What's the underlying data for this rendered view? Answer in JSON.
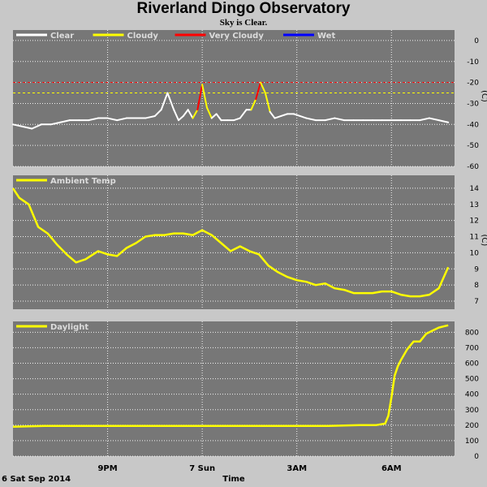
{
  "title": "Riverland Dingo Observatory",
  "subtitle": "Sky is Clear.",
  "x_axis_label": "Time",
  "date_label": "6 Sat Sep 2014",
  "x_ticks": [
    "9PM",
    "7 Sun",
    "3AM",
    "6AM"
  ],
  "colors": {
    "plot_bg": "#777777",
    "page_bg": "#c8c8c8",
    "grid": "#ffffff",
    "clear": "#ffffff",
    "cloudy": "#ffff00",
    "very_cloudy": "#ff0000",
    "wet": "#0000ff",
    "legend_text": "#dcdcdc"
  },
  "chart_data": [
    {
      "type": "line",
      "name": "sky-temperature",
      "unit": "(C)",
      "ylim": [
        -60,
        5
      ],
      "yticks": [
        0,
        -10,
        -20,
        -30,
        -40,
        -50,
        -60
      ],
      "thresholds": [
        {
          "value": -20,
          "color": "#ff0000"
        },
        {
          "value": -25,
          "color": "#ffff00"
        }
      ],
      "legend": [
        {
          "label": "Clear",
          "color": "#ffffff"
        },
        {
          "label": "Cloudy",
          "color": "#ffff00"
        },
        {
          "label": "Very Cloudy",
          "color": "#ff0000"
        },
        {
          "label": "Wet",
          "color": "#0000ff"
        }
      ],
      "x_hours": [
        18.0,
        18.3,
        18.6,
        18.9,
        19.2,
        19.5,
        19.8,
        20.1,
        20.4,
        20.7,
        21.0,
        21.3,
        21.6,
        21.9,
        22.2,
        22.5,
        22.7,
        22.9,
        23.1,
        23.25,
        23.4,
        23.55,
        23.7,
        23.85,
        24.0,
        24.15,
        24.3,
        24.45,
        24.6,
        24.8,
        25.0,
        25.2,
        25.4,
        25.55,
        25.7,
        25.85,
        26.0,
        26.15,
        26.3,
        26.5,
        26.7,
        26.9,
        27.1,
        27.3,
        27.6,
        27.9,
        28.2,
        28.5,
        28.8,
        29.1,
        29.4,
        29.7,
        30.0,
        30.3,
        30.6,
        30.9,
        31.2,
        31.5,
        31.8
      ],
      "values": [
        -40,
        -41,
        -42,
        -40,
        -40,
        -39,
        -38,
        -38,
        -38,
        -37,
        -37,
        -38,
        -37,
        -37,
        -37,
        -36,
        -33,
        -25,
        -33,
        -38,
        -36,
        -33,
        -37,
        -33,
        -21,
        -32,
        -37,
        -35,
        -38,
        -38,
        -38,
        -37,
        -33,
        -33,
        -28,
        -20,
        -25,
        -34,
        -37,
        -36,
        -35,
        -35,
        -36,
        -37,
        -38,
        -38,
        -37,
        -38,
        -38,
        -38,
        -38,
        -38,
        -38,
        -38,
        -38,
        -38,
        -37,
        -38,
        -39
      ],
      "status": [
        "clear",
        "clear",
        "clear",
        "clear",
        "clear",
        "clear",
        "clear",
        "clear",
        "clear",
        "clear",
        "clear",
        "clear",
        "clear",
        "clear",
        "clear",
        "clear",
        "clear",
        "clear",
        "clear",
        "clear",
        "clear",
        "clear",
        "clear",
        "cloudy",
        "very_cloudy",
        "cloudy",
        "clear",
        "clear",
        "clear",
        "clear",
        "clear",
        "clear",
        "clear",
        "clear",
        "cloudy",
        "very_cloudy",
        "cloudy",
        "clear",
        "clear",
        "clear",
        "clear",
        "clear",
        "clear",
        "clear",
        "clear",
        "clear",
        "clear",
        "clear",
        "clear",
        "clear",
        "clear",
        "clear",
        "clear",
        "clear",
        "clear",
        "clear",
        "clear",
        "clear",
        "clear"
      ]
    },
    {
      "type": "line",
      "name": "ambient-temperature",
      "unit": "(C)",
      "ylim": [
        6.5,
        14.8
      ],
      "yticks": [
        14,
        13,
        12,
        11,
        10,
        9,
        8,
        7
      ],
      "legend": [
        {
          "label": "Ambient Temp",
          "color": "#ffff00"
        }
      ],
      "x_hours": [
        18.0,
        18.2,
        18.5,
        18.8,
        19.1,
        19.4,
        19.7,
        20.0,
        20.3,
        20.7,
        21.0,
        21.3,
        21.6,
        21.9,
        22.2,
        22.5,
        22.8,
        23.1,
        23.4,
        23.7,
        24.0,
        24.3,
        24.6,
        24.9,
        25.2,
        25.5,
        25.8,
        26.1,
        26.4,
        26.7,
        27.0,
        27.3,
        27.6,
        27.9,
        28.2,
        28.5,
        28.8,
        29.1,
        29.4,
        29.7,
        30.0,
        30.3,
        30.6,
        30.9,
        31.2,
        31.5,
        31.8
      ],
      "values": [
        14.0,
        13.4,
        13.0,
        11.6,
        11.2,
        10.5,
        9.9,
        9.4,
        9.6,
        10.1,
        9.9,
        9.8,
        10.3,
        10.6,
        11.0,
        11.1,
        11.1,
        11.2,
        11.2,
        11.1,
        11.4,
        11.1,
        10.6,
        10.1,
        10.4,
        10.1,
        9.9,
        9.2,
        8.8,
        8.5,
        8.3,
        8.2,
        8.0,
        8.1,
        7.8,
        7.7,
        7.5,
        7.5,
        7.5,
        7.6,
        7.6,
        7.4,
        7.3,
        7.3,
        7.4,
        7.8,
        9.1
      ]
    },
    {
      "type": "line",
      "name": "daylight",
      "unit": "",
      "ylim": [
        0,
        870
      ],
      "yticks": [
        800,
        700,
        600,
        500,
        400,
        300,
        200,
        100,
        0
      ],
      "legend": [
        {
          "label": "Daylight",
          "color": "#ffff00"
        }
      ],
      "x_hours": [
        18.0,
        19.0,
        20.0,
        21.0,
        22.0,
        23.0,
        24.0,
        25.0,
        26.0,
        27.0,
        28.0,
        29.0,
        29.5,
        29.8,
        29.9,
        30.0,
        30.1,
        30.2,
        30.3,
        30.5,
        30.7,
        30.9,
        31.1,
        31.3,
        31.5,
        31.7,
        31.8
      ],
      "values": [
        190,
        195,
        195,
        195,
        195,
        195,
        195,
        195,
        195,
        195,
        195,
        200,
        200,
        210,
        260,
        380,
        520,
        580,
        620,
        690,
        740,
        740,
        790,
        810,
        830,
        840,
        845
      ]
    }
  ]
}
